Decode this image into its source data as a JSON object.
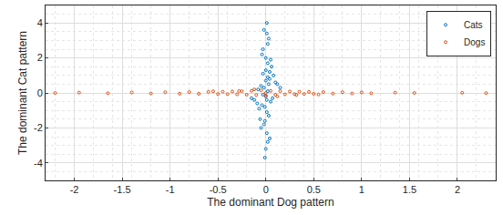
{
  "chart_data": {
    "type": "scatter",
    "xlabel": "The dominant Dog pattern",
    "ylabel": "The dominant Cat pattern",
    "xlim": [
      -2.3,
      2.4
    ],
    "xticks": [
      -2,
      -1.5,
      -1,
      -0.5,
      0,
      0.5,
      1,
      1.5,
      2
    ],
    "ylim": [
      -5,
      5
    ],
    "yticks": [
      -4,
      -2,
      0,
      2,
      4
    ],
    "grid": true,
    "legend": "top-right",
    "marker": "circle-open",
    "series": [
      {
        "name": "Cats",
        "color": "#0072BD",
        "x": [
          0.01,
          -0.02,
          0.03,
          -0.01,
          0.02,
          0.0,
          -0.03,
          0.04,
          -0.04,
          0.01,
          0.05,
          -0.05,
          0.02,
          -0.02,
          0.06,
          -0.06,
          0.0,
          0.03,
          -0.03,
          0.01,
          0.08,
          -0.07,
          0.02,
          -0.01,
          0.04,
          -0.04,
          0.0,
          0.1,
          -0.09,
          0.03,
          0.05,
          -0.05,
          0.01,
          -0.02,
          0.07,
          -0.08,
          0.0,
          0.02,
          -0.03,
          0.12,
          -0.12,
          0.04,
          0.0,
          -0.01,
          0.02,
          0.15,
          -0.15,
          0.01
        ],
        "y": [
          4.0,
          3.6,
          3.1,
          -3.7,
          2.8,
          -3.2,
          2.5,
          -2.6,
          2.2,
          -2.3,
          1.9,
          -2.0,
          1.7,
          -1.8,
          1.5,
          -1.5,
          1.3,
          -1.3,
          1.1,
          -1.1,
          1.0,
          -0.9,
          0.9,
          -0.8,
          0.8,
          -0.7,
          0.7,
          0.6,
          -0.6,
          0.5,
          -0.5,
          0.4,
          -0.4,
          0.3,
          -0.3,
          0.2,
          -0.2,
          0.1,
          -0.1,
          0.5,
          -0.4,
          1.2,
          2.0,
          -1.6,
          -2.8,
          0.3,
          -0.3,
          3.4
        ]
      },
      {
        "name": "Dogs",
        "color": "#D95319",
        "x": [
          -2.2,
          -1.95,
          -1.65,
          -1.4,
          -1.2,
          -1.05,
          -0.9,
          -0.8,
          -0.7,
          -0.6,
          -0.5,
          -0.45,
          -0.4,
          -0.35,
          -0.3,
          -0.25,
          -0.2,
          -0.15,
          -0.1,
          -0.05,
          0.0,
          0.05,
          0.1,
          0.15,
          0.2,
          0.25,
          0.3,
          0.35,
          0.4,
          0.45,
          0.5,
          0.6,
          0.7,
          0.8,
          0.9,
          1.0,
          1.1,
          1.35,
          1.55,
          2.05,
          2.3,
          -0.55,
          0.55,
          -0.28,
          0.32,
          -0.12,
          0.12,
          0.0
        ],
        "y": [
          0.0,
          0.02,
          -0.02,
          0.03,
          -0.03,
          0.04,
          -0.04,
          0.05,
          -0.05,
          0.06,
          -0.06,
          0.07,
          -0.07,
          0.08,
          -0.08,
          0.1,
          -0.1,
          0.12,
          -0.12,
          0.15,
          -0.15,
          0.12,
          -0.1,
          0.1,
          -0.08,
          0.08,
          -0.07,
          0.07,
          -0.06,
          0.06,
          -0.05,
          0.05,
          -0.04,
          0.04,
          -0.03,
          0.03,
          -0.02,
          0.02,
          0.0,
          0.01,
          -0.01,
          0.09,
          -0.09,
          0.11,
          -0.11,
          0.2,
          -0.2,
          0.0
        ]
      }
    ]
  }
}
